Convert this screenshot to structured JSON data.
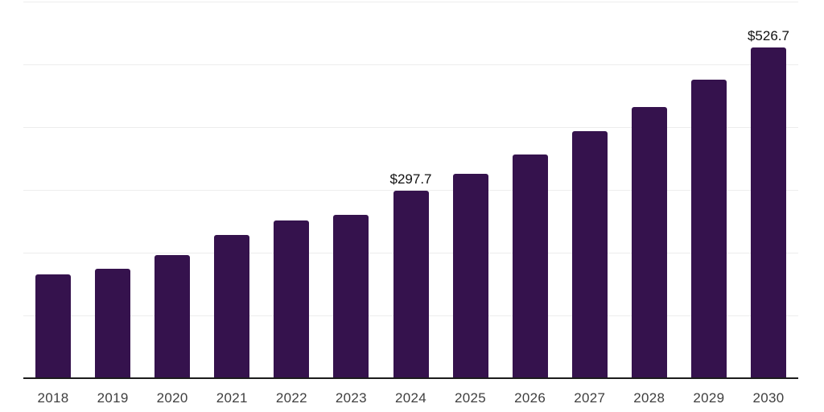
{
  "chart_data": {
    "type": "bar",
    "title": "",
    "xlabel": "",
    "ylabel": "",
    "categories": [
      "2018",
      "2019",
      "2020",
      "2021",
      "2022",
      "2023",
      "2024",
      "2025",
      "2026",
      "2027",
      "2028",
      "2029",
      "2030"
    ],
    "values": [
      164.7,
      173.7,
      194.9,
      228.2,
      250.6,
      259.6,
      297.7,
      325.0,
      356.4,
      392.6,
      431.0,
      475.0,
      526.7
    ],
    "data_labels": {
      "2024": "$297.7",
      "2030": "$526.7"
    },
    "value_prefix": "$",
    "ylim": [
      0,
      600
    ],
    "gridline_interval": 100,
    "grid": "horizontal",
    "legend": "none",
    "y_axis_labels_visible": false,
    "bar_color": "#35124d",
    "gridline_color": "#ededed",
    "axis_line_color": "#1c1c1c",
    "tick_label_color": "#3f3f3f",
    "data_label_color": "#111111",
    "background_color": "#ffffff"
  }
}
